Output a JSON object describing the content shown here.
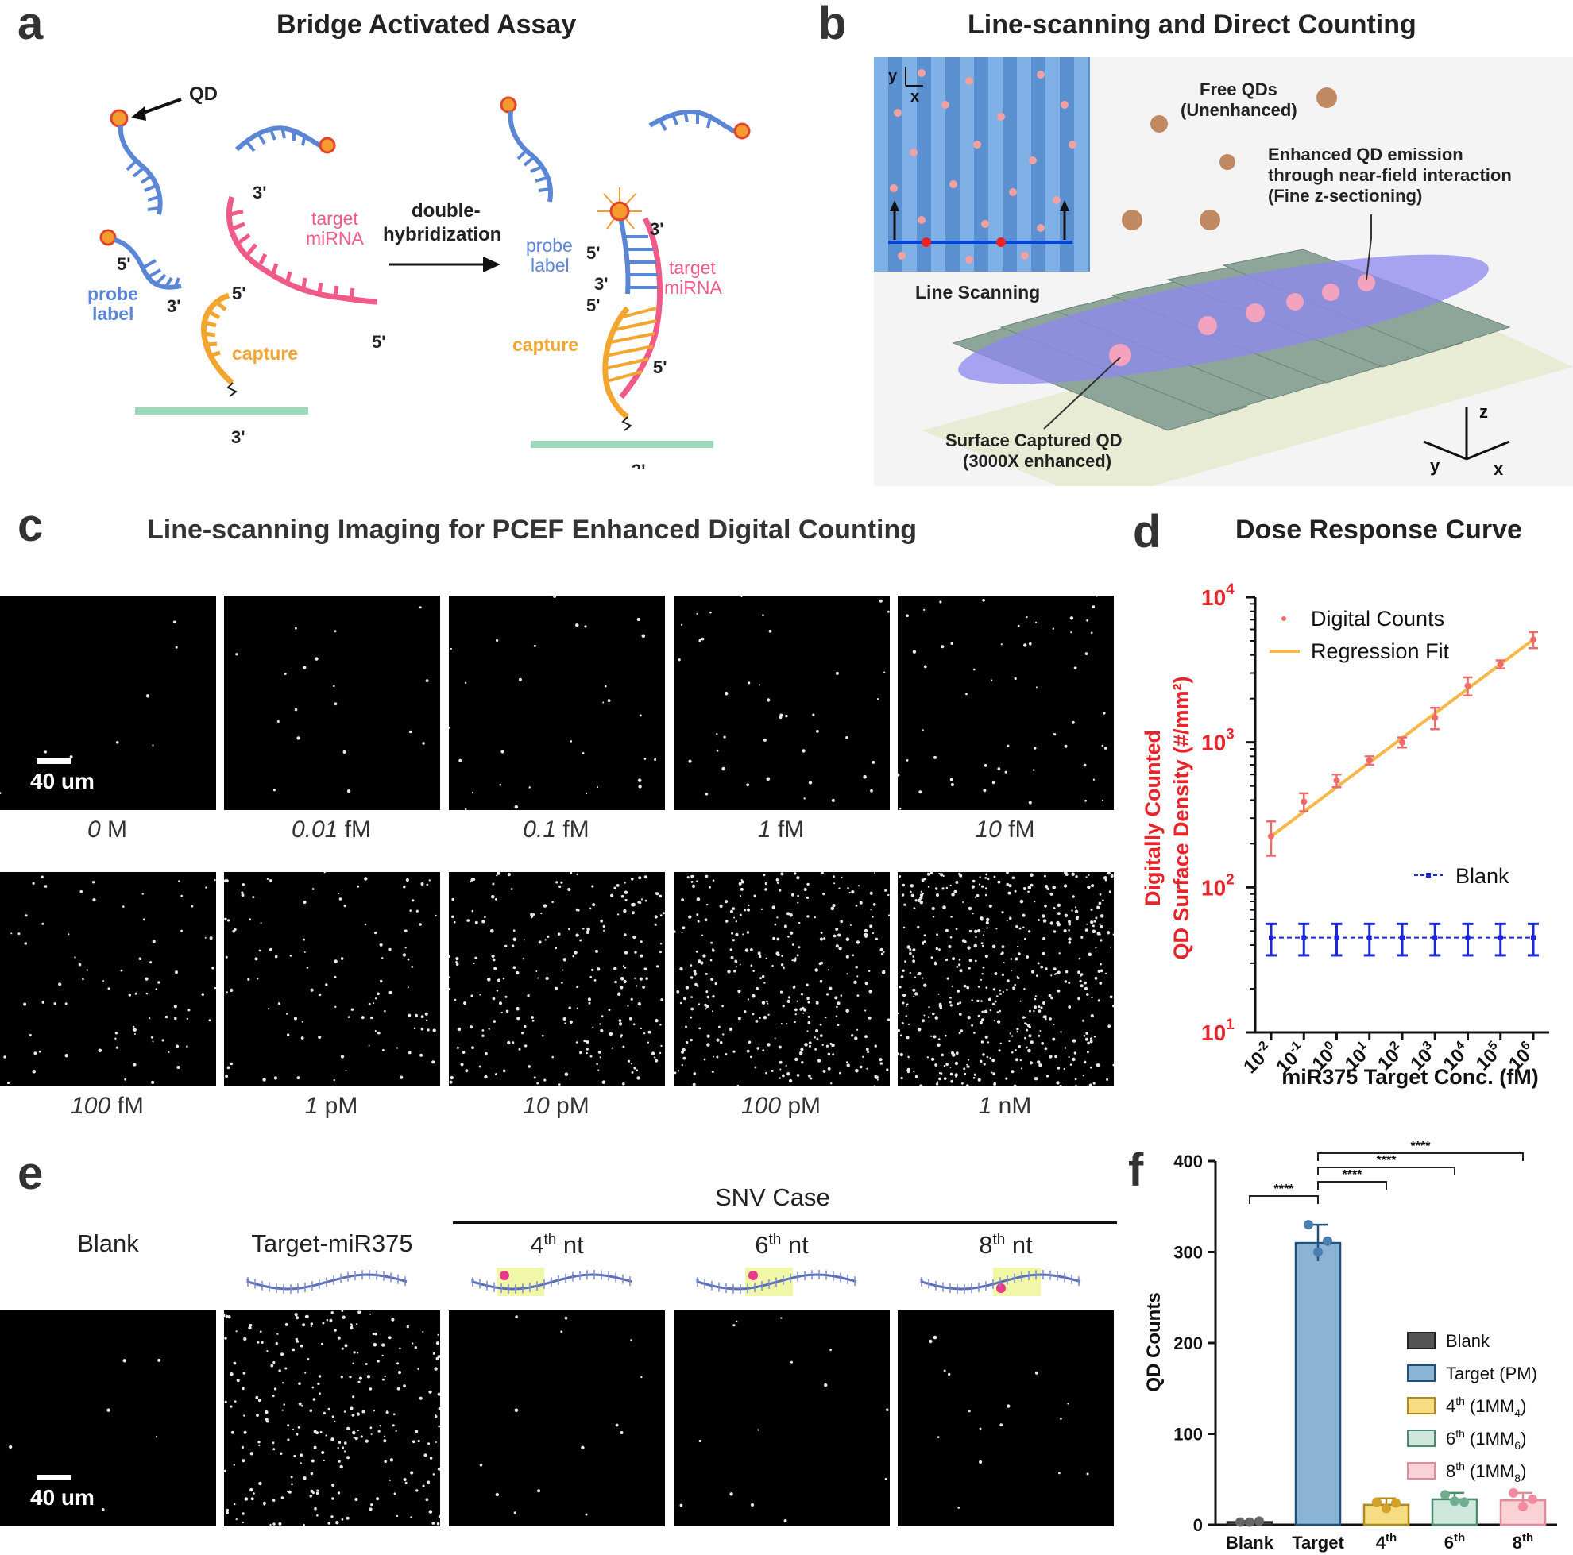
{
  "panel_a": {
    "letter": "a",
    "title": "Bridge Activated Assay",
    "labels": {
      "qd": "QD",
      "target": "target",
      "mirna": "miRNA",
      "probe": "probe",
      "label": "label",
      "capture": "capture",
      "arrow_top": "double-",
      "arrow_bottom": "hybridization",
      "p5": "5'",
      "p3": "3'"
    }
  },
  "panel_b": {
    "letter": "b",
    "title": "Line-scanning and Direct Counting",
    "labels": {
      "free_qds_1": "Free QDs",
      "free_qds_2": "(Unenhanced)",
      "enh_1": "Enhanced QD emission",
      "enh_2": "through near-field interaction",
      "enh_3": "(Fine z-sectioning)",
      "line_scanning": "Line Scanning",
      "surf_1": "Surface Captured QD",
      "surf_2": "(3000X enhanced)",
      "ax_x": "x",
      "ax_y": "y",
      "ax_z": "z"
    }
  },
  "panel_c": {
    "letter": "c",
    "title": "Line-scanning Imaging for PCEF Enhanced Digital Counting",
    "scale": "40 um",
    "images": [
      {
        "num": "0",
        "unit": "M"
      },
      {
        "num": "0.01",
        "unit": "fM"
      },
      {
        "num": "0.1",
        "unit": "fM"
      },
      {
        "num": "1",
        "unit": "fM"
      },
      {
        "num": "10",
        "unit": "fM"
      },
      {
        "num": "100",
        "unit": "fM"
      },
      {
        "num": "1",
        "unit": "pM"
      },
      {
        "num": "10",
        "unit": "pM"
      },
      {
        "num": "100",
        "unit": "pM"
      },
      {
        "num": "1",
        "unit": "nM"
      }
    ]
  },
  "panel_d": {
    "letter": "d",
    "title": "Dose Response Curve"
  },
  "panel_e": {
    "letter": "e",
    "snv_case": "SNV Case",
    "scale": "40 um",
    "columns": [
      {
        "label": "Blank"
      },
      {
        "label": "Target-miR375"
      },
      {
        "num": "4",
        "sup": "th",
        "suffix": "nt"
      },
      {
        "num": "6",
        "sup": "th",
        "suffix": "nt"
      },
      {
        "num": "8",
        "sup": "th",
        "suffix": "nt"
      }
    ]
  },
  "panel_f": {
    "letter": "f",
    "sig": "****"
  },
  "colors": {
    "probe": "#5b86d6",
    "target": "#f05a86",
    "capture": "#f3a62f",
    "qd": "#f59b2f",
    "surface": "#9ed9bc",
    "red_axis": "#e8242b",
    "blank_blue": "#1c27d6",
    "fit": "#f7b84b",
    "digital": "#ef6a6a",
    "target_bar": "#8bb4d4"
  },
  "chart_data": [
    {
      "type": "scatter",
      "title": "Dose Response Curve",
      "xlabel": "miR375 Target Conc. (fM)",
      "ylabel_line1": "Digitally Counted",
      "ylabel_line2": "QD Surface Density (#/mm²)",
      "x_scale": "log",
      "y_scale": "log",
      "x_ticks": [
        "10-2",
        "10-1",
        "100",
        "101",
        "102",
        "103",
        "104",
        "105",
        "106"
      ],
      "x_tick_bases": [
        "10",
        "10",
        "10",
        "10",
        "10",
        "10",
        "10",
        "10",
        "10"
      ],
      "x_tick_exps": [
        "-2",
        "-1",
        "0",
        "1",
        "2",
        "3",
        "4",
        "5",
        "6"
      ],
      "y_ticks_base": [
        "10",
        "10",
        "10",
        "10"
      ],
      "y_ticks_exp": [
        "1",
        "2",
        "3",
        "4"
      ],
      "ylim": [
        10,
        10000
      ],
      "x": [
        0.01,
        0.1,
        1,
        10,
        100,
        1000,
        10000,
        100000,
        1000000
      ],
      "series": [
        {
          "name": "Digital Counts",
          "values": [
            225,
            390,
            545,
            750,
            1000,
            1480,
            2450,
            3450,
            5100
          ],
          "err": [
            60,
            55,
            55,
            50,
            80,
            250,
            350,
            220,
            650
          ]
        },
        {
          "name": "Regression Fit",
          "values_from": [
            0.01,
            1000000
          ],
          "values": [
            225,
            5100
          ]
        },
        {
          "name": "Blank",
          "values": [
            45,
            45,
            45,
            45,
            45,
            45,
            45,
            45,
            45
          ],
          "err": [
            11,
            11,
            11,
            11,
            11,
            11,
            11,
            11,
            11
          ]
        }
      ],
      "legend": [
        "Digital Counts",
        "Regression Fit",
        "Blank"
      ]
    },
    {
      "type": "bar",
      "ylabel": "QD Counts",
      "ylim": [
        0,
        400
      ],
      "y_ticks": [
        "0",
        "100",
        "200",
        "300",
        "400"
      ],
      "categories": [
        "Blank",
        "Target",
        "4",
        "6",
        "8"
      ],
      "category_sups": [
        "",
        "",
        "th",
        "th",
        "th"
      ],
      "values": [
        3,
        310,
        22,
        28,
        27
      ],
      "err": [
        1,
        20,
        7,
        7,
        8
      ],
      "points": [
        [
          3,
          3,
          4
        ],
        [
          330,
          300,
          312
        ],
        [
          25,
          18,
          24
        ],
        [
          33,
          26,
          25
        ],
        [
          35,
          20,
          28
        ]
      ],
      "legend": [
        {
          "label": "Blank",
          "mm": ""
        },
        {
          "label": "Target (PM)",
          "mm": ""
        },
        {
          "label": "4",
          "sup": "th",
          "mm": "4"
        },
        {
          "label": "6",
          "sup": "th",
          "mm": "6"
        },
        {
          "label": "8",
          "sup": "th",
          "mm": "8"
        }
      ],
      "significance": [
        {
          "from": "Blank",
          "to": "Target",
          "label": "****"
        },
        {
          "from": "Target",
          "to": "4th",
          "label": "****"
        },
        {
          "from": "Target",
          "to": "6th",
          "label": "****"
        },
        {
          "from": "Target",
          "to": "8th",
          "label": "****"
        }
      ]
    }
  ]
}
